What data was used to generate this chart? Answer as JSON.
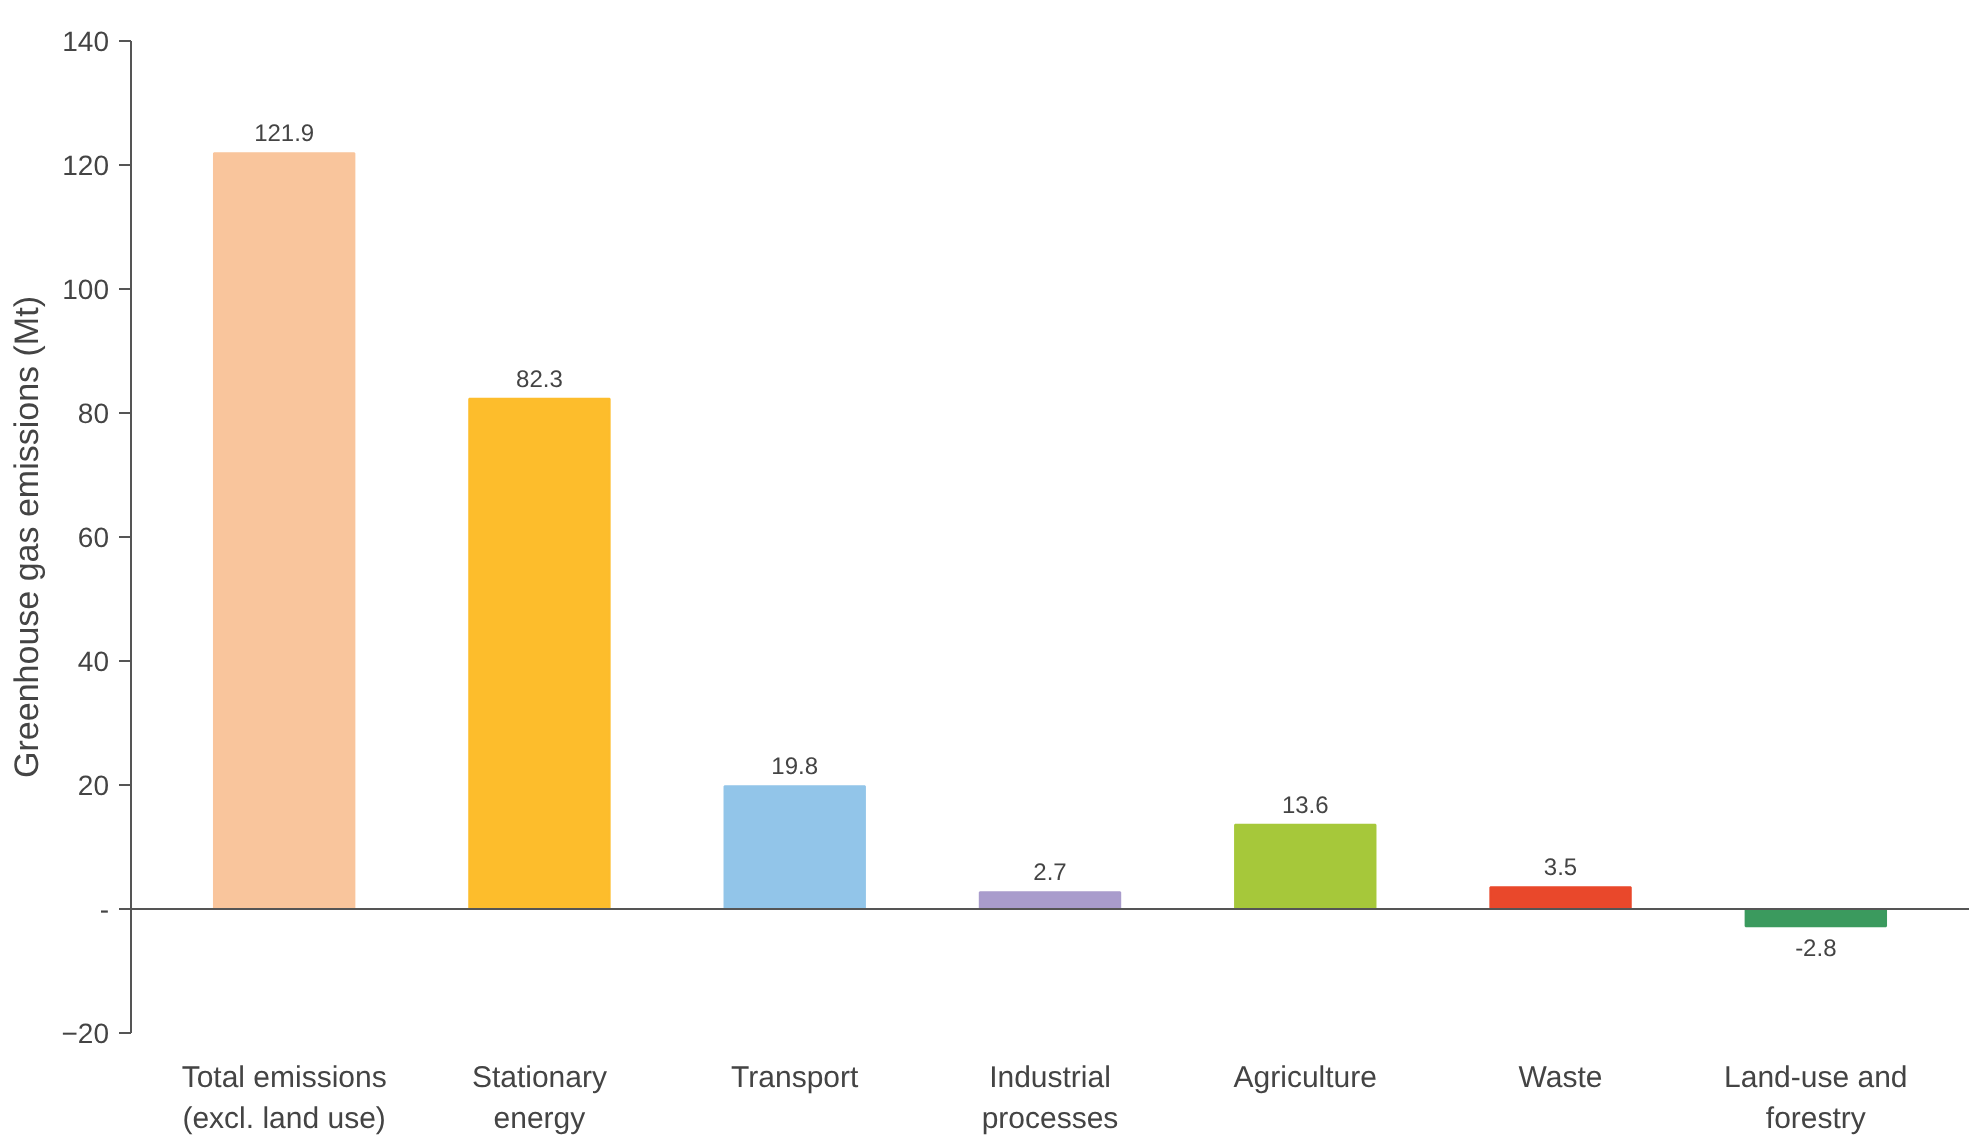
{
  "chart_data": {
    "type": "bar",
    "ylabel": "Greenhouse gas emissions (Mt)",
    "categories": [
      "Total emissions\n(excl. land use)",
      "Stationary\nenergy",
      "Transport",
      "Industrial\nprocesses",
      "Agriculture",
      "Waste",
      "Land-use and\nforestry"
    ],
    "values": [
      121.9,
      82.3,
      19.8,
      2.7,
      13.6,
      3.5,
      -2.8
    ],
    "colors": [
      "#f9c59c",
      "#fdbd2c",
      "#92c5e9",
      "#a99ccc",
      "#a6c83a",
      "#e9482b",
      "#3b9a5e"
    ],
    "ylim": [
      -20,
      140
    ],
    "yticks": [
      -20,
      {
        "value": 0,
        "label": "-"
      },
      20,
      40,
      60,
      80,
      100,
      120,
      140
    ],
    "data_labels": true
  }
}
